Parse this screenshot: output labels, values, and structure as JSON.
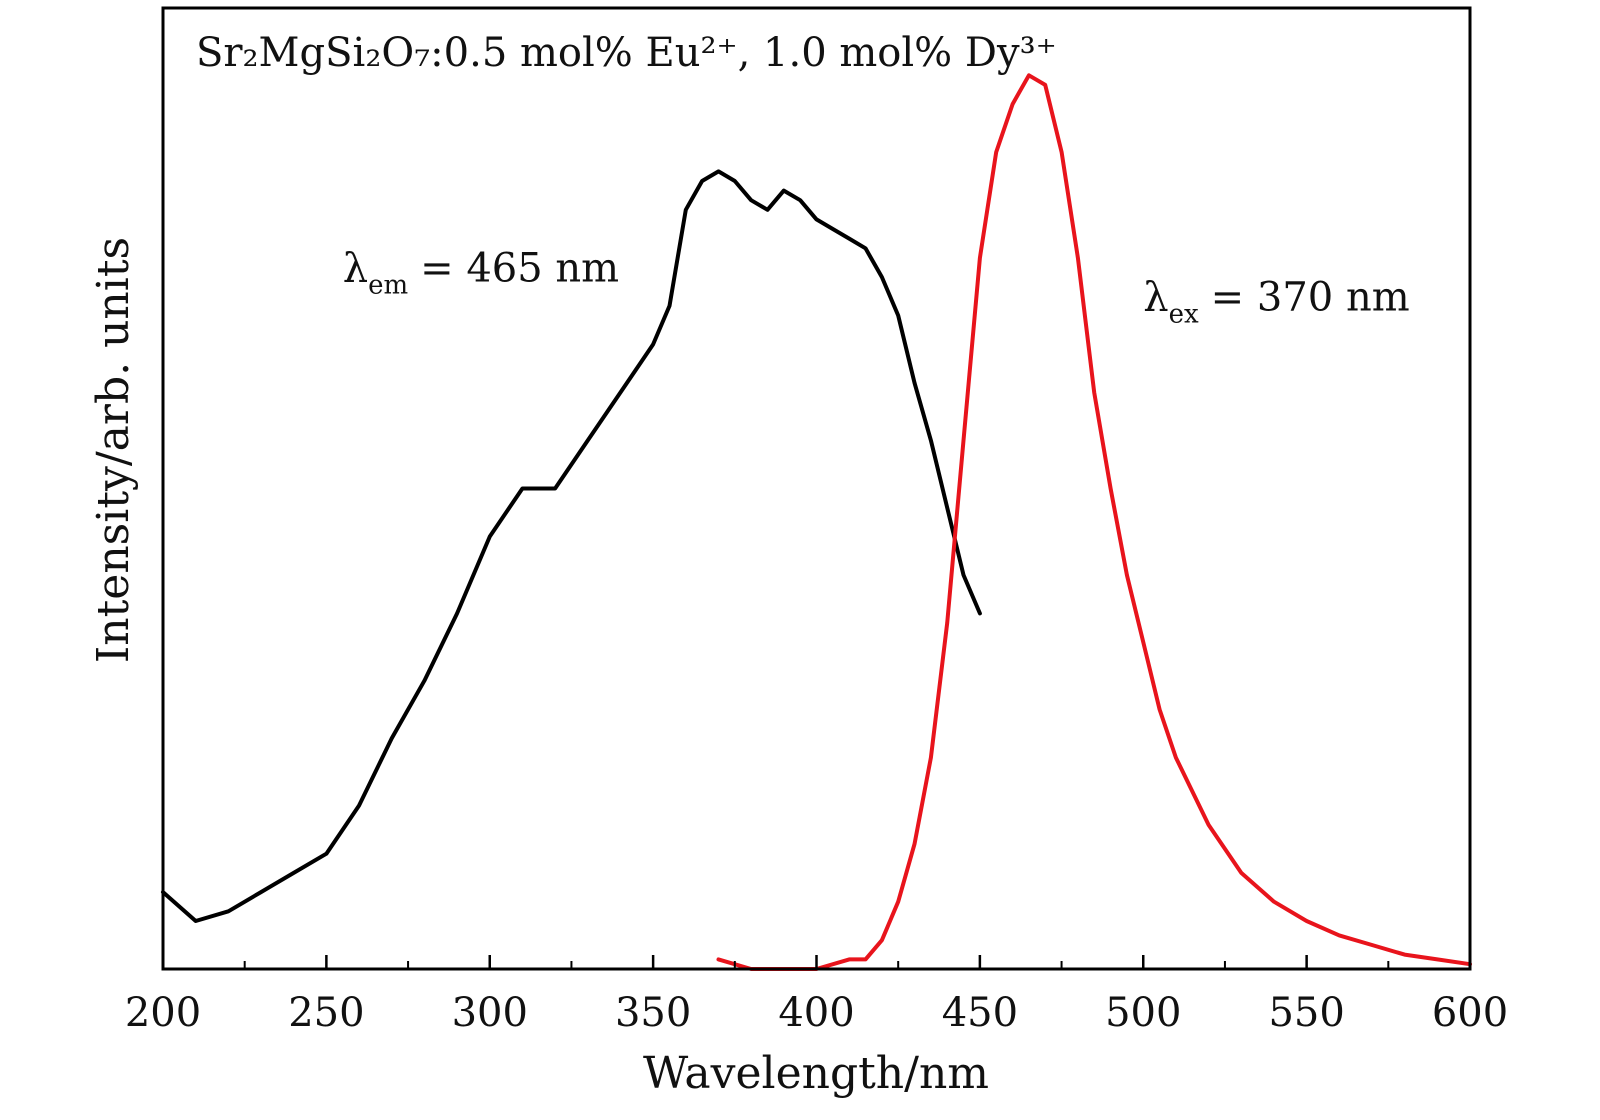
{
  "chart_data": {
    "type": "line",
    "title": "Sr₂MgSi₂O₇:0.5 mol% Eu²⁺, 1.0 mol% Dy³⁺",
    "xlabel": "Wavelength/nm",
    "ylabel": "Intensity/arb. units",
    "xlim": [
      200,
      600
    ],
    "ylim": [
      0,
      1
    ],
    "xticks": [
      200,
      250,
      300,
      350,
      400,
      450,
      500,
      550,
      600
    ],
    "x_minor_step": 25,
    "y_ticks_shown": false,
    "grid": false,
    "legend": "none",
    "series": [
      {
        "color": "#000000",
        "x": [
          200,
          210,
          220,
          230,
          240,
          250,
          260,
          270,
          280,
          290,
          300,
          310,
          320,
          330,
          340,
          350,
          355,
          360,
          365,
          370,
          375,
          380,
          385,
          390,
          395,
          400,
          405,
          410,
          415,
          420,
          425,
          430,
          435,
          440,
          445,
          450
        ],
        "y": [
          0.08,
          0.05,
          0.06,
          0.08,
          0.1,
          0.12,
          0.17,
          0.24,
          0.3,
          0.37,
          0.45,
          0.5,
          0.5,
          0.55,
          0.6,
          0.65,
          0.69,
          0.79,
          0.82,
          0.83,
          0.82,
          0.8,
          0.79,
          0.81,
          0.8,
          0.78,
          0.77,
          0.76,
          0.75,
          0.72,
          0.68,
          0.61,
          0.55,
          0.48,
          0.41,
          0.37
        ]
      },
      {
        "color": "#e8141c",
        "x": [
          370,
          380,
          390,
          400,
          410,
          415,
          420,
          425,
          430,
          435,
          440,
          445,
          450,
          455,
          460,
          465,
          470,
          475,
          480,
          485,
          490,
          495,
          500,
          505,
          510,
          520,
          530,
          540,
          550,
          560,
          570,
          580,
          590,
          600
        ],
        "y": [
          0.01,
          0.0,
          0.0,
          0.0,
          0.01,
          0.01,
          0.03,
          0.07,
          0.13,
          0.22,
          0.36,
          0.55,
          0.74,
          0.85,
          0.9,
          0.93,
          0.92,
          0.85,
          0.74,
          0.6,
          0.5,
          0.41,
          0.34,
          0.27,
          0.22,
          0.15,
          0.1,
          0.07,
          0.05,
          0.035,
          0.025,
          0.015,
          0.01,
          0.005
        ]
      }
    ],
    "annotations": [
      {
        "greek": "λ",
        "sub": "em",
        "rest": "= 465 nm",
        "x": 255,
        "y": 0.73,
        "anchor": "middle-left"
      },
      {
        "greek": "λ",
        "sub": "ex",
        "rest": "= 370 nm",
        "x": 500,
        "y": 0.7,
        "anchor": "middle-left"
      }
    ]
  }
}
